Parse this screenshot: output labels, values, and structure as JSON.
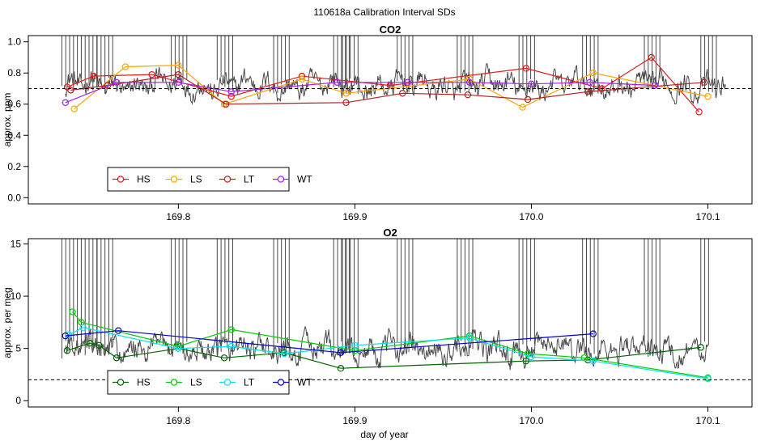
{
  "figure": {
    "suptitle": "110618a   Calibration Interval SDs",
    "xlabel": "day of year"
  },
  "colors": {
    "noise": "#4a4a4a",
    "HS_top": "#e31a1c",
    "LS_top": "#ffa500",
    "LT_top": "#b22222",
    "WT_top": "#a020f0",
    "HS_bot": "#006400",
    "LS_bot": "#00cd00",
    "LT_bot": "#00e5ee",
    "WT_bot": "#0000cd"
  },
  "chart_data": [
    {
      "type": "line",
      "title": "CO2",
      "xlabel": "day of year",
      "ylabel": "approx. ppm",
      "xlim": [
        169.715,
        170.125
      ],
      "ylim": [
        -0.04,
        1.04
      ],
      "xticks": [
        169.8,
        169.9,
        170.0,
        170.1
      ],
      "xticklabels": [
        "169.8",
        "169.9",
        "170.0",
        "170.1"
      ],
      "yticks": [
        0.0,
        0.2,
        0.4,
        0.6,
        0.8,
        1.0
      ],
      "yticklabels": [
        "0.0",
        "0.2",
        "0.4",
        "0.6",
        "0.8",
        "1.0"
      ],
      "reference_line": 0.7,
      "legend_position": "bottom-left",
      "noise_trace": {
        "mean": 0.72,
        "amp": 0.055,
        "x_start": 169.736,
        "x_end": 170.11
      },
      "series": [
        {
          "name": "HS",
          "color_key": "HS_top",
          "x": [
            169.737,
            169.752,
            169.785,
            169.83,
            169.87,
            169.92,
            169.997,
            170.04,
            170.068,
            170.095
          ],
          "y": [
            0.71,
            0.78,
            0.79,
            0.65,
            0.78,
            0.72,
            0.83,
            0.7,
            0.9,
            0.55
          ]
        },
        {
          "name": "LS",
          "color_key": "LS_top",
          "x": [
            169.741,
            169.77,
            169.8,
            169.826,
            169.87,
            169.895,
            169.965,
            169.995,
            170.035,
            170.1
          ],
          "y": [
            0.57,
            0.84,
            0.85,
            0.6,
            0.76,
            0.67,
            0.76,
            0.58,
            0.8,
            0.65
          ]
        },
        {
          "name": "LT",
          "color_key": "LT_top",
          "x": [
            169.739,
            169.76,
            169.8,
            169.827,
            169.895,
            169.927,
            169.964,
            169.998,
            170.032,
            170.098
          ],
          "y": [
            0.69,
            0.72,
            0.79,
            0.6,
            0.61,
            0.67,
            0.66,
            0.63,
            0.68,
            0.74
          ]
        },
        {
          "name": "WT",
          "color_key": "WT_top",
          "x": [
            169.736,
            169.765,
            169.8,
            169.83,
            169.89,
            169.93,
            169.965,
            170.0,
            170.033,
            170.07
          ],
          "y": [
            0.61,
            0.74,
            0.74,
            0.68,
            0.74,
            0.74,
            0.74,
            0.73,
            0.74,
            0.72
          ]
        }
      ]
    },
    {
      "type": "line",
      "title": "O2",
      "xlabel": "day of year",
      "ylabel": "approx. per meg",
      "xlim": [
        169.715,
        170.125
      ],
      "ylim": [
        -0.6,
        15.5
      ],
      "xticks": [
        169.8,
        169.9,
        170.0,
        170.1
      ],
      "xticklabels": [
        "169.8",
        "169.9",
        "170.0",
        "170.1"
      ],
      "yticks": [
        0,
        5,
        10,
        15
      ],
      "yticklabels": [
        "0",
        "5",
        "10",
        "15"
      ],
      "reference_line": 2.0,
      "legend_position": "bottom-left",
      "noise_trace": {
        "mean": 4.9,
        "amp": 0.9,
        "x_start": 169.736,
        "x_end": 170.1
      },
      "series": [
        {
          "name": "HS",
          "color_key": "HS_bot",
          "x": [
            169.737,
            169.75,
            169.755,
            169.765,
            169.8,
            169.826,
            169.86,
            169.892,
            169.997,
            170.032,
            170.096
          ],
          "y": [
            4.8,
            5.5,
            5.3,
            4.1,
            5.0,
            4.1,
            4.6,
            3.1,
            3.8,
            3.9,
            5.1
          ]
        },
        {
          "name": "LS",
          "color_key": "LS_bot",
          "x": [
            169.74,
            169.745,
            169.8,
            169.83,
            169.9,
            169.965,
            169.998,
            170.03,
            170.1
          ],
          "y": [
            8.5,
            7.5,
            5.2,
            6.8,
            4.8,
            6.2,
            4.5,
            4.1,
            2.2
          ]
        },
        {
          "name": "LT",
          "color_key": "LT_bot",
          "x": [
            169.738,
            169.746,
            169.8,
            169.83,
            169.86,
            169.9,
            169.965,
            170.0,
            170.035,
            170.1
          ],
          "y": [
            6.3,
            7.0,
            5.0,
            5.2,
            4.5,
            5.3,
            6.0,
            4.2,
            3.8,
            2.1
          ]
        },
        {
          "name": "WT",
          "color_key": "WT_bot",
          "x": [
            169.736,
            169.766,
            169.892,
            170.035
          ],
          "y": [
            6.2,
            6.7,
            4.6,
            6.4
          ]
        }
      ]
    }
  ]
}
